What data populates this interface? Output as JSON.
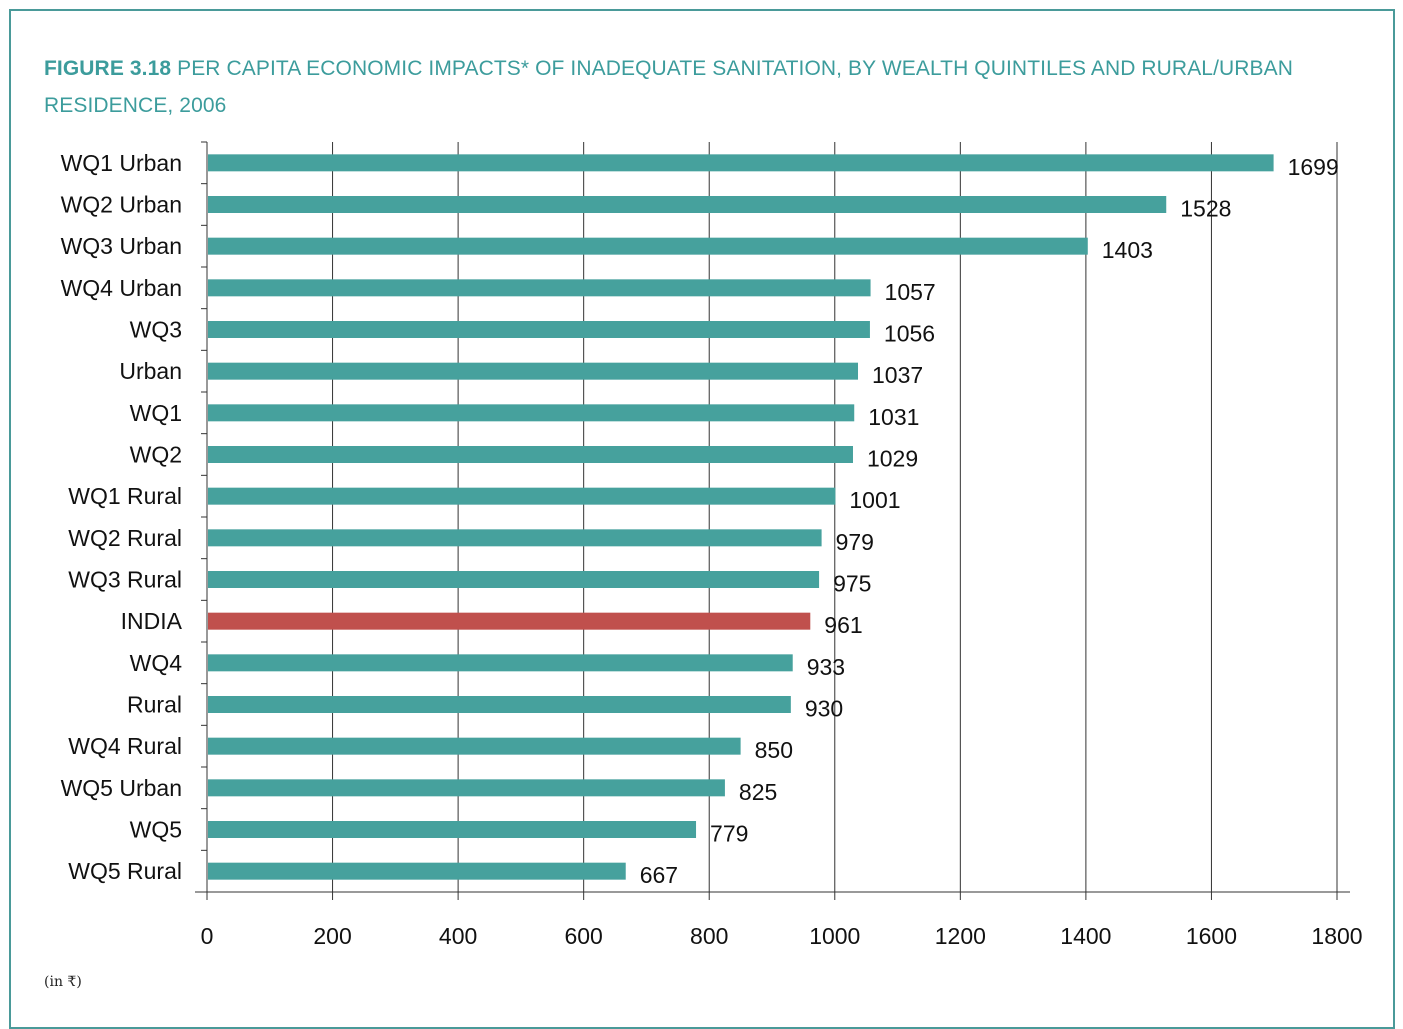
{
  "header": {
    "figure_label": "FIGURE 3.18",
    "title": "PER CAPITA ECONOMIC IMPACTS* OF INADEQUATE SANITATION, BY WEALTH QUINTILES AND RURAL/URBAN RESIDENCE, 2006"
  },
  "footnote": "(in ₹)",
  "colors": {
    "bar": "#46a19d",
    "highlight": "#c0504d",
    "title": "#3c9c9c",
    "frame": "#4a9a99"
  },
  "chart_data": {
    "type": "bar",
    "orientation": "horizontal",
    "title": "PER CAPITA ECONOMIC IMPACTS* OF INADEQUATE SANITATION, BY WEALTH QUINTILES AND RURAL/URBAN RESIDENCE, 2006",
    "categories": [
      "WQ1 Urban",
      "WQ2 Urban",
      "WQ3 Urban",
      "WQ4 Urban",
      "WQ3",
      "Urban",
      "WQ1",
      "WQ2",
      "WQ1 Rural",
      "WQ2 Rural",
      "WQ3 Rural",
      "INDIA",
      "WQ4",
      "Rural",
      "WQ4 Rural",
      "WQ5 Urban",
      "WQ5",
      "WQ5 Rural"
    ],
    "values": [
      1699,
      1528,
      1403,
      1057,
      1056,
      1037,
      1031,
      1029,
      1001,
      979,
      975,
      961,
      933,
      930,
      850,
      825,
      779,
      667
    ],
    "highlight_category": "INDIA",
    "xlim": [
      0,
      1800
    ],
    "x_ticks": [
      "0",
      "200",
      "400",
      "600",
      "800",
      "1000",
      "1200",
      "1400",
      "1600",
      "1800"
    ],
    "xlabel": "",
    "ylabel": "",
    "grid": "vertical"
  }
}
